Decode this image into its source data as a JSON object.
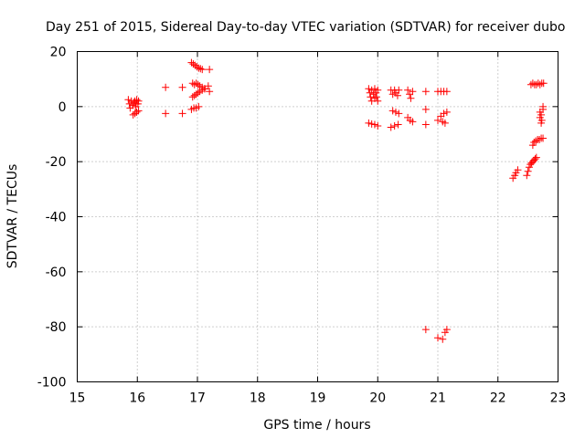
{
  "chart_data": {
    "type": "scatter",
    "title": "Day 251 of 2015, Sidereal Day-to-day VTEC variation (SDTVAR) for receiver dubo",
    "xlabel": "GPS time / hours",
    "ylabel": "SDTVAR / TECUs",
    "xlim": [
      15,
      23
    ],
    "ylim": [
      -100,
      20
    ],
    "xticks": [
      15,
      16,
      17,
      18,
      19,
      20,
      21,
      22,
      23
    ],
    "yticks": [
      -100,
      -80,
      -60,
      -40,
      -20,
      0,
      20
    ],
    "grid": true,
    "marker": "+",
    "color": "#ff0000",
    "series": [
      {
        "name": "SDTVAR",
        "points": [
          [
            15.85,
            2.5
          ],
          [
            15.87,
            1.0
          ],
          [
            15.88,
            -0.5
          ],
          [
            15.9,
            2.0
          ],
          [
            15.92,
            0.5
          ],
          [
            15.94,
            1.5
          ],
          [
            15.96,
            2.0
          ],
          [
            15.97,
            0.0
          ],
          [
            15.98,
            1.0
          ],
          [
            15.99,
            2.5
          ],
          [
            16.01,
            1.0
          ],
          [
            16.02,
            2.0
          ],
          [
            15.93,
            -3.0
          ],
          [
            15.96,
            -2.5
          ],
          [
            15.99,
            -2.0
          ],
          [
            16.02,
            -1.5
          ],
          [
            16.47,
            7.0
          ],
          [
            16.47,
            -2.5
          ],
          [
            16.75,
            7.0
          ],
          [
            16.75,
            -2.5
          ],
          [
            16.9,
            16.0
          ],
          [
            16.93,
            15.5
          ],
          [
            16.96,
            15.0
          ],
          [
            16.99,
            14.5
          ],
          [
            17.02,
            14.0
          ],
          [
            17.05,
            13.8
          ],
          [
            17.08,
            13.5
          ],
          [
            17.2,
            13.5
          ],
          [
            16.92,
            8.5
          ],
          [
            16.95,
            8.0
          ],
          [
            16.98,
            8.5
          ],
          [
            17.01,
            8.0
          ],
          [
            17.04,
            7.5
          ],
          [
            17.08,
            7.0
          ],
          [
            17.12,
            6.5
          ],
          [
            17.18,
            7.5
          ],
          [
            17.2,
            5.5
          ],
          [
            16.92,
            3.5
          ],
          [
            16.95,
            4.0
          ],
          [
            16.98,
            4.5
          ],
          [
            17.01,
            5.0
          ],
          [
            17.04,
            5.5
          ],
          [
            17.08,
            6.0
          ],
          [
            17.12,
            6.5
          ],
          [
            16.9,
            -1.0
          ],
          [
            16.94,
            -0.5
          ],
          [
            16.98,
            -0.5
          ],
          [
            17.02,
            0.0
          ],
          [
            19.85,
            6.5
          ],
          [
            19.87,
            5.0
          ],
          [
            19.88,
            3.5
          ],
          [
            19.9,
            2.0
          ],
          [
            19.9,
            6.0
          ],
          [
            19.93,
            4.5
          ],
          [
            19.95,
            3.0
          ],
          [
            19.95,
            6.5
          ],
          [
            19.97,
            5.0
          ],
          [
            19.98,
            3.5
          ],
          [
            20.0,
            6.0
          ],
          [
            20.0,
            2.0
          ],
          [
            19.85,
            -6.0
          ],
          [
            19.9,
            -6.3
          ],
          [
            19.95,
            -6.5
          ],
          [
            20.0,
            -7.0
          ],
          [
            20.22,
            6.0
          ],
          [
            20.25,
            4.5
          ],
          [
            20.28,
            6.0
          ],
          [
            20.3,
            5.0
          ],
          [
            20.33,
            4.0
          ],
          [
            20.35,
            6.0
          ],
          [
            20.25,
            -1.5
          ],
          [
            20.3,
            -2.0
          ],
          [
            20.35,
            -2.5
          ],
          [
            20.22,
            -7.5
          ],
          [
            20.28,
            -7.0
          ],
          [
            20.34,
            -6.5
          ],
          [
            20.5,
            6.0
          ],
          [
            20.53,
            4.5
          ],
          [
            20.55,
            3.0
          ],
          [
            20.58,
            5.5
          ],
          [
            20.5,
            -4.0
          ],
          [
            20.54,
            -5.0
          ],
          [
            20.58,
            -5.5
          ],
          [
            20.8,
            5.5
          ],
          [
            20.8,
            -1.0
          ],
          [
            20.8,
            -6.5
          ],
          [
            20.8,
            -81.0
          ],
          [
            21.0,
            5.5
          ],
          [
            21.05,
            5.5
          ],
          [
            21.1,
            5.5
          ],
          [
            21.15,
            5.5
          ],
          [
            21.0,
            -5.0
          ],
          [
            21.05,
            -3.5
          ],
          [
            21.1,
            -2.5
          ],
          [
            21.15,
            -2.0
          ],
          [
            21.08,
            -5.5
          ],
          [
            21.12,
            -6.0
          ],
          [
            21.0,
            -84.0
          ],
          [
            21.08,
            -84.5
          ],
          [
            21.12,
            -82.0
          ],
          [
            21.15,
            -81.0
          ],
          [
            22.25,
            -26.0
          ],
          [
            22.28,
            -25.0
          ],
          [
            22.3,
            -24.0
          ],
          [
            22.33,
            -23.0
          ],
          [
            22.48,
            -25.0
          ],
          [
            22.5,
            -23.5
          ],
          [
            22.52,
            -22.0
          ],
          [
            22.54,
            -21.0
          ],
          [
            22.56,
            -20.5
          ],
          [
            22.58,
            -20.0
          ],
          [
            22.6,
            -19.5
          ],
          [
            22.62,
            -19.0
          ],
          [
            22.64,
            -18.5
          ],
          [
            22.58,
            -14.0
          ],
          [
            22.6,
            -13.0
          ],
          [
            22.63,
            -12.5
          ],
          [
            22.66,
            -12.0
          ],
          [
            22.69,
            -12.0
          ],
          [
            22.72,
            -11.5
          ],
          [
            22.75,
            -11.5
          ],
          [
            22.55,
            8.0
          ],
          [
            22.58,
            8.5
          ],
          [
            22.61,
            8.0
          ],
          [
            22.64,
            8.0
          ],
          [
            22.67,
            8.5
          ],
          [
            22.7,
            8.0
          ],
          [
            22.73,
            8.5
          ],
          [
            22.76,
            8.5
          ],
          [
            22.7,
            -2.0
          ],
          [
            22.7,
            -4.0
          ],
          [
            22.72,
            -3.0
          ],
          [
            22.73,
            -5.0
          ],
          [
            22.75,
            -1.0
          ],
          [
            22.75,
            0.0
          ],
          [
            22.72,
            -6.0
          ]
        ]
      }
    ]
  }
}
